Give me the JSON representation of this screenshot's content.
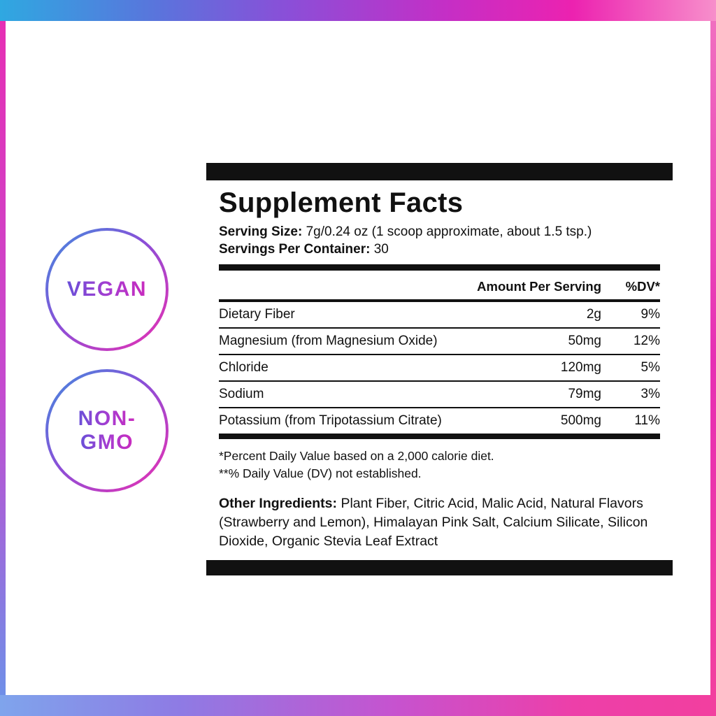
{
  "colors": {
    "gradient_blue": "#2FA8E1",
    "gradient_purple": "#8A4FD8",
    "gradient_magenta": "#E62FB4",
    "gradient_pink": "#F78FCB",
    "panel_black": "#111111",
    "background": "#FFFFFF"
  },
  "badges": {
    "vegan": {
      "label": "VEGAN"
    },
    "non_gmo": {
      "line1": "NON-",
      "line2": "GMO"
    }
  },
  "panel": {
    "title": "Supplement Facts",
    "serving_size": {
      "label": "Serving Size:",
      "value": "7g/0.24 oz (1 scoop approximate, about 1.5 tsp.)"
    },
    "servings_per_container": {
      "label": "Servings Per Container:",
      "value": "30"
    },
    "table": {
      "amount_header": "Amount Per Serving",
      "dv_header": "%DV*",
      "rows": [
        {
          "name": "Dietary Fiber",
          "amount": "2g",
          "dv": "9%"
        },
        {
          "name": "Magnesium (from Magnesium Oxide)",
          "amount": "50mg",
          "dv": "12%"
        },
        {
          "name": "Chloride",
          "amount": "120mg",
          "dv": "5%"
        },
        {
          "name": "Sodium",
          "amount": "79mg",
          "dv": "3%"
        },
        {
          "name": "Potassium (from Tripotassium Citrate)",
          "amount": "500mg",
          "dv": "11%"
        }
      ]
    },
    "footnotes": {
      "line1": "*Percent Daily Value based on a 2,000 calorie diet.",
      "line2": "**% Daily Value (DV) not established."
    },
    "other_ingredients": {
      "label": "Other Ingredients:",
      "value": "Plant Fiber, Citric Acid, Malic Acid, Natural Flavors (Strawberry and Lemon), Himalayan Pink Salt, Calcium Silicate, Silicon Dioxide, Organic Stevia Leaf Extract"
    }
  }
}
